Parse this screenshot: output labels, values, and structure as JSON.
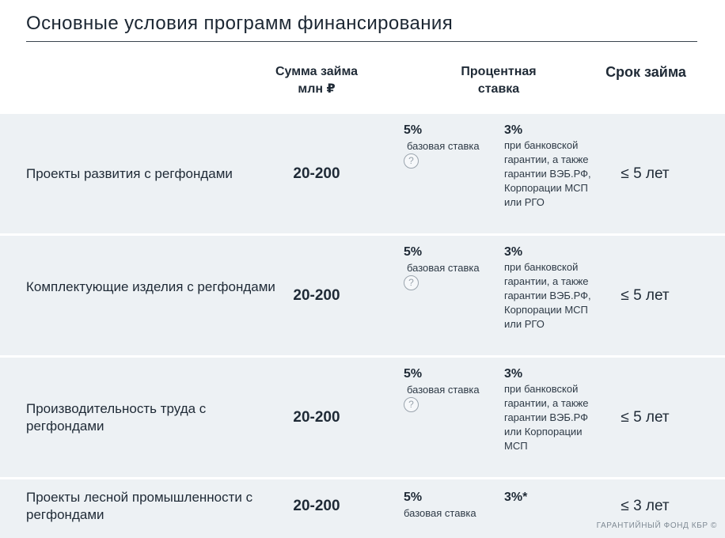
{
  "title": "Основные условия программ финансирования",
  "headers": {
    "amount": "Сумма займа млн ₽",
    "rate": "Процентная ставка",
    "term": "Срок займа"
  },
  "rows": [
    {
      "name": "Проекты развития с регфондами",
      "amount": "20-200",
      "base_rate": "5%",
      "base_label": "базовая ставка",
      "help_icon": "?",
      "reduced_rate": "3%",
      "reduced_note": "при банковской гарантии, а также гарантии ВЭБ.РФ, Корпорации МСП или РГО",
      "term": "≤ 5 лет"
    },
    {
      "name": "Комплектующие изделия с регфондами",
      "amount": "20-200",
      "base_rate": "5%",
      "base_label": "базовая ставка",
      "help_icon": "?",
      "reduced_rate": "3%",
      "reduced_note": "при банковской гарантии, а также гарантии ВЭБ.РФ, Корпорации МСП или РГО",
      "term": "≤ 5 лет"
    },
    {
      "name": "Производительность труда с регфондами",
      "amount": "20-200",
      "base_rate": "5%",
      "base_label": "базовая ставка",
      "help_icon": "?",
      "reduced_rate": "3%",
      "reduced_note": "при банковской гарантии, а также гарантии ВЭБ.РФ или Корпорации МСП",
      "term": "≤ 5 лет"
    },
    {
      "name": "Проекты лесной промышленности с регфондами",
      "amount": "20-200",
      "base_rate": "5%",
      "base_label": "базовая ставка",
      "reduced_rate": "3%*",
      "term": "≤ 3 лет"
    }
  ],
  "footer": "ГАРАНТИЙНЫЙ ФОНД КБР ©"
}
